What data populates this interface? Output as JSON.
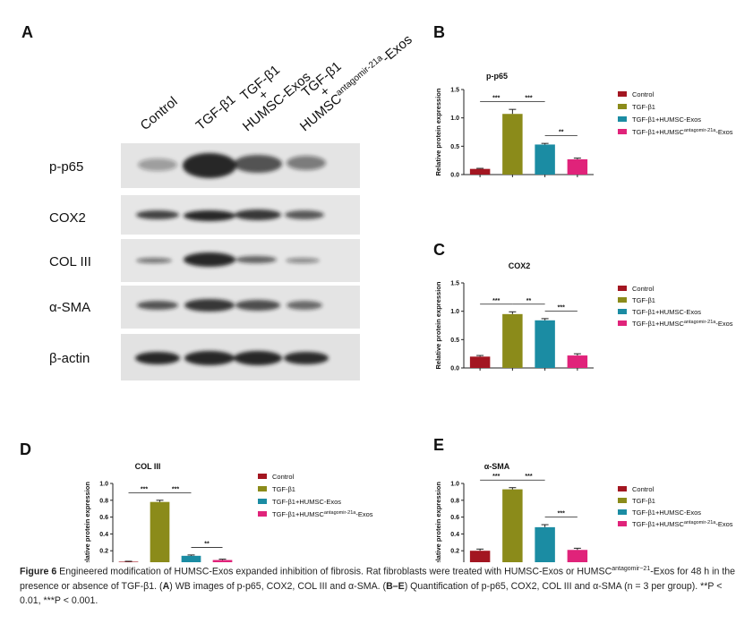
{
  "panel_a": {
    "letter": "A",
    "columns": [
      "Control",
      "TGF-β1",
      [
        "TGF-β1",
        "+",
        "HUMSC-Exos"
      ],
      [
        "TGF-β1",
        "+",
        [
          "HUMSC",
          "antagomir-21a",
          "-Exos"
        ]
      ]
    ],
    "rows": [
      "p-p65",
      "COX2",
      "COL III",
      "α-SMA",
      "β-actin"
    ]
  },
  "chart_data": [
    {
      "type": "bar",
      "panel": "B",
      "title": "p-p65",
      "y_label": "Relative protein expression",
      "categories": [
        "Control",
        "TGF-β1",
        "TGF-β1+HUMSC-Exos",
        [
          "TGF-β1+HUMSC",
          "antagomir-21a",
          "-Exos"
        ]
      ],
      "values": [
        0.1,
        1.07,
        0.53,
        0.27
      ],
      "errors": [
        0.01,
        0.08,
        0.02,
        0.02
      ],
      "colors": [
        "#a31621",
        "#8b8b1a",
        "#1b8ca3",
        "#e0237a"
      ],
      "ylim": [
        0,
        1.5
      ],
      "yticks": [
        {
          "value": 0,
          "label": "0.0"
        },
        0.5,
        {
          "value": 1,
          "label": "1.0"
        },
        1.5
      ],
      "annotations": [
        "***",
        "***",
        "**"
      ]
    },
    {
      "type": "bar",
      "panel": "C",
      "title": "COX2",
      "y_label": "Relative protein expression",
      "categories": [
        "Control",
        "TGF-β1",
        "TGF-β1+HUMSC-Exos",
        [
          "TGF-β1+HUMSC",
          "antagomir-21a",
          "-Exos"
        ]
      ],
      "values": [
        0.2,
        0.95,
        0.84,
        0.22
      ],
      "errors": [
        0.02,
        0.04,
        0.03,
        0.03
      ],
      "colors": [
        "#a31621",
        "#8b8b1a",
        "#1b8ca3",
        "#e0237a"
      ],
      "ylim": [
        0,
        1.5
      ],
      "yticks": [
        {
          "value": 0,
          "label": "0.0"
        },
        0.5,
        {
          "value": 1,
          "label": "1.0"
        },
        1.5
      ],
      "annotations": [
        "***",
        "**",
        "***"
      ]
    },
    {
      "type": "bar",
      "panel": "D",
      "title": "COL III",
      "y_label": "Relative protein expression",
      "categories": [
        "Control",
        "TGF-β1",
        "TGF-β1+HUMSC-Exos",
        [
          "TGF-β1+HUMSC",
          "antagomir-21a",
          "-Exos"
        ]
      ],
      "values": [
        0.07,
        0.78,
        0.14,
        0.09
      ],
      "errors": [
        0.005,
        0.02,
        0.01,
        0.01
      ],
      "colors": [
        "#a31621",
        "#8b8b1a",
        "#1b8ca3",
        "#e0237a"
      ],
      "ylim": [
        0,
        1
      ],
      "yticks": [
        {
          "value": 0,
          "label": "0.0"
        },
        0.2,
        0.4,
        0.6,
        0.8,
        {
          "value": 1,
          "label": "1.0"
        }
      ],
      "annotations": [
        "***",
        "***",
        "**"
      ]
    },
    {
      "type": "bar",
      "panel": "E",
      "title": "α-SMA",
      "y_label": "Relative protein expression",
      "categories": [
        "Control",
        "TGF-β1",
        "TGF-β1+HUMSC-Exos",
        [
          "TGF-β1+HUMSC",
          "antagomir-21a",
          "-Exos"
        ]
      ],
      "values": [
        0.2,
        0.93,
        0.48,
        0.21
      ],
      "errors": [
        0.02,
        0.02,
        0.03,
        0.02
      ],
      "colors": [
        "#a31621",
        "#8b8b1a",
        "#1b8ca3",
        "#e0237a"
      ],
      "ylim": [
        0,
        1
      ],
      "yticks": [
        {
          "value": 0,
          "label": "0.0"
        },
        0.2,
        0.4,
        0.6,
        0.8,
        {
          "value": 1,
          "label": "1.0"
        }
      ],
      "annotations": [
        "***",
        "***",
        "***"
      ]
    }
  ],
  "caption": {
    "label": "Figure 6",
    "text_1": "Engineered modification of HUMSC-Exos expanded inhibition of fibrosis. Rat fibroblasts were treated with HUMSC-Exos or HUMSC",
    "sup": "antagomir−21",
    "text_2": "-Exos for 48 h in the presence or absence of TGF-β1. (",
    "ref_1": "A",
    "text_3": ") WB images of p-p65, COX2, COL III and α-SMA. (",
    "ref_2": "B–E",
    "text_4": ") Quantification of p-p65, COX2, COL III and α-SMA (n = 3 per group). **P < 0.01, ***P < 0.001."
  }
}
